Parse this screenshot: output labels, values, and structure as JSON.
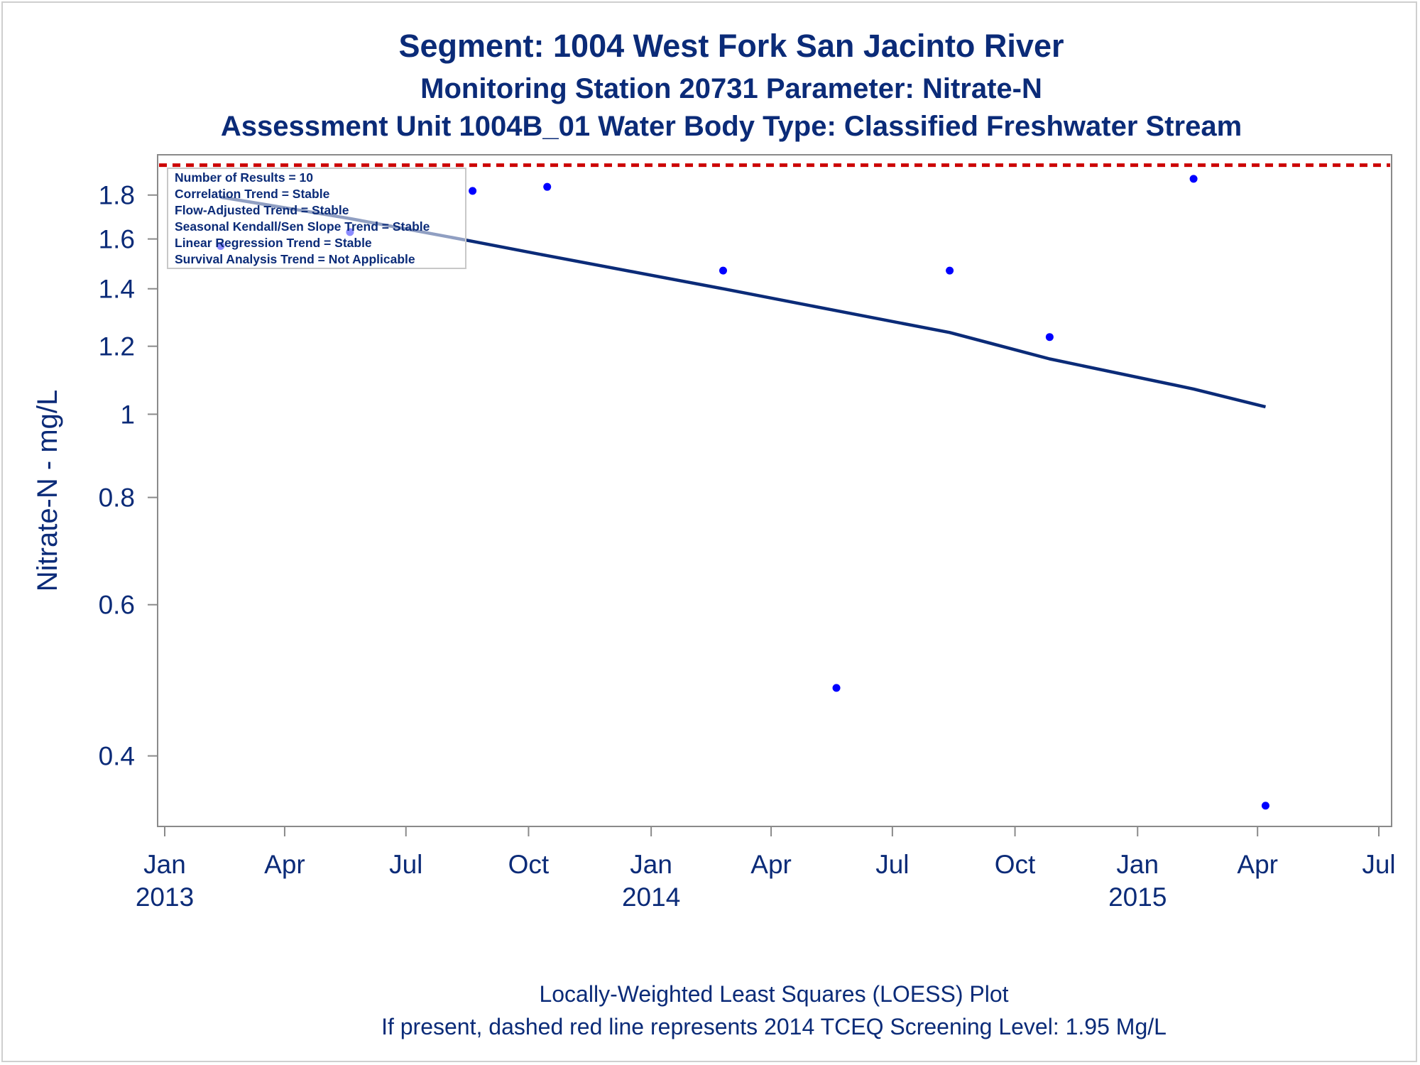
{
  "titles": [
    "Segment: 1004  West Fork San Jacinto River",
    "Monitoring Station 20731 Parameter: Nitrate-N",
    "Assessment Unit 1004B_01   Water Body Type: Classified Freshwater Stream"
  ],
  "footnotes": [
    "Locally-Weighted Least Squares (LOESS) Plot",
    "If present, dashed red line represents 2014 TCEQ Screening Level: 1.95 Mg/L"
  ],
  "legend_lines": [
    "Number of Results = 10",
    "Correlation Trend = Stable",
    "Flow-Adjusted Trend = Stable",
    "Seasonal Kendall/Sen Slope Trend = Stable",
    "Linear Regression Trend = Stable",
    "Survival Analysis Trend = Not Applicable"
  ],
  "colors": {
    "text": "#0b2b78",
    "points": "#0000ff",
    "loess_line": "#0b2b78",
    "screening_line": "#cc0000",
    "axis": "#8a8a8a"
  },
  "chart_data": {
    "type": "scatter",
    "title": "Segment: 1004  West Fork San Jacinto River",
    "ylabel": "Nitrate-N - mg/L",
    "xlabel": "",
    "y_scale": "log",
    "ylim": [
      0.34,
      1.96
    ],
    "xlim": [
      "2013-01-01",
      "2015-07-01"
    ],
    "y_ticks": [
      0.4,
      0.6,
      0.8,
      1,
      1.2,
      1.4,
      1.6,
      1.8
    ],
    "y_tick_labels": [
      "0.4",
      "0.6",
      "0.8",
      "1",
      "1.2",
      "1.4",
      "1.6",
      "1.8"
    ],
    "x_ticks": [
      {
        "date": "2013-01-01",
        "label": "Jan",
        "year": "2013"
      },
      {
        "date": "2013-04-01",
        "label": "Apr",
        "year": ""
      },
      {
        "date": "2013-07-01",
        "label": "Jul",
        "year": ""
      },
      {
        "date": "2013-10-01",
        "label": "Oct",
        "year": ""
      },
      {
        "date": "2014-01-01",
        "label": "Jan",
        "year": "2014"
      },
      {
        "date": "2014-04-01",
        "label": "Apr",
        "year": ""
      },
      {
        "date": "2014-07-01",
        "label": "Jul",
        "year": ""
      },
      {
        "date": "2014-10-01",
        "label": "Oct",
        "year": ""
      },
      {
        "date": "2015-01-01",
        "label": "Jan",
        "year": "2015"
      },
      {
        "date": "2015-04-01",
        "label": "Apr",
        "year": ""
      },
      {
        "date": "2015-07-01",
        "label": "Jul",
        "year": ""
      }
    ],
    "points": [
      {
        "date": "2013-02-12",
        "value": 1.57
      },
      {
        "date": "2013-05-20",
        "value": 1.63
      },
      {
        "date": "2013-08-20",
        "value": 1.82
      },
      {
        "date": "2013-10-15",
        "value": 1.84
      },
      {
        "date": "2014-02-24",
        "value": 1.47
      },
      {
        "date": "2014-05-20",
        "value": 0.48
      },
      {
        "date": "2014-08-13",
        "value": 1.47
      },
      {
        "date": "2014-10-27",
        "value": 1.23
      },
      {
        "date": "2015-02-12",
        "value": 1.88
      },
      {
        "date": "2015-04-07",
        "value": 0.35
      }
    ],
    "loess": [
      {
        "date": "2013-02-12",
        "value": 1.79
      },
      {
        "date": "2013-05-20",
        "value": 1.69
      },
      {
        "date": "2013-08-20",
        "value": 1.59
      },
      {
        "date": "2013-10-15",
        "value": 1.53
      },
      {
        "date": "2014-02-24",
        "value": 1.4
      },
      {
        "date": "2014-05-20",
        "value": 1.32
      },
      {
        "date": "2014-08-13",
        "value": 1.245
      },
      {
        "date": "2014-10-27",
        "value": 1.16
      },
      {
        "date": "2015-02-12",
        "value": 1.07
      },
      {
        "date": "2015-04-07",
        "value": 1.02
      }
    ],
    "reference_line": {
      "value": 1.95,
      "style": "dashed"
    }
  }
}
